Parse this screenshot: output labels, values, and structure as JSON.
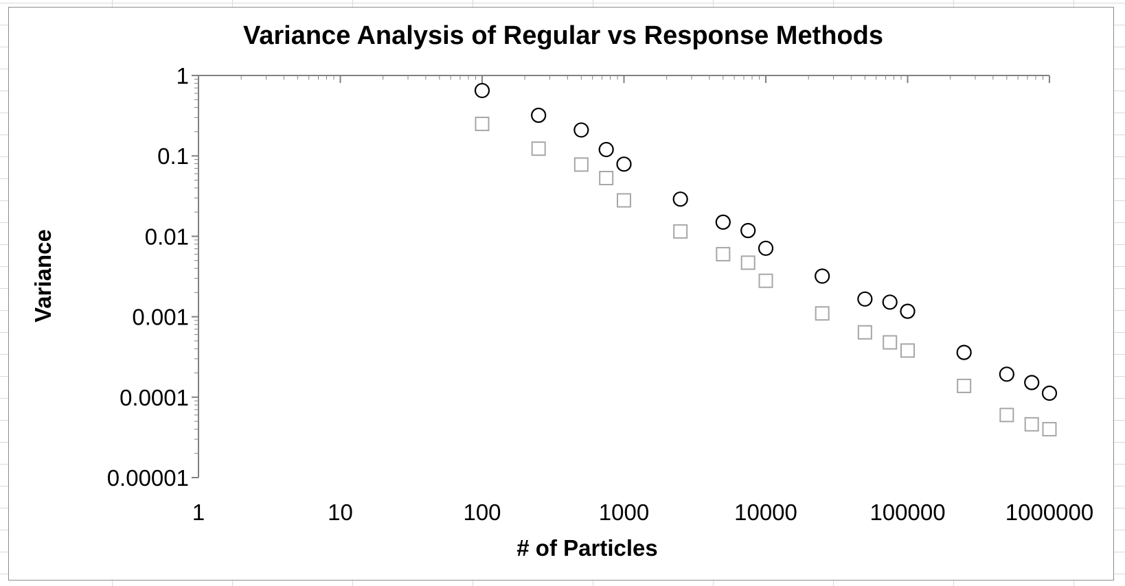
{
  "chart_data": {
    "type": "scatter",
    "title": "Variance Analysis of Regular vs Response Methods",
    "xlabel": "# of Particles",
    "ylabel": "Variance",
    "xscale": "log",
    "yscale": "log",
    "xlim": [
      1,
      1000000
    ],
    "ylim": [
      1e-05,
      1
    ],
    "xticks": [
      "1",
      "10",
      "100",
      "1000",
      "10000",
      "100000",
      "1000000"
    ],
    "yticks": [
      "1",
      "0.1",
      "0.01",
      "0.001",
      "0.0001",
      "0.00001"
    ],
    "legend": "none",
    "grid": false,
    "series": [
      {
        "marker": "circle",
        "color": "#000000",
        "x": [
          100,
          250,
          500,
          750,
          1000,
          2500,
          5000,
          7500,
          10000,
          25000,
          50000,
          75000,
          100000,
          250000,
          500000,
          750000,
          1000000
        ],
        "y": [
          0.65,
          0.32,
          0.21,
          0.12,
          0.079,
          0.029,
          0.015,
          0.0118,
          0.0071,
          0.0032,
          0.00166,
          0.00152,
          0.00117,
          0.00036,
          0.000193,
          0.000152,
          0.000112
        ]
      },
      {
        "marker": "square",
        "color": "#a6a6a6",
        "x": [
          100,
          250,
          500,
          750,
          1000,
          2500,
          5000,
          7500,
          10000,
          25000,
          50000,
          75000,
          100000,
          250000,
          500000,
          750000,
          1000000
        ],
        "y": [
          0.25,
          0.123,
          0.078,
          0.053,
          0.028,
          0.0115,
          0.006,
          0.0047,
          0.0028,
          0.0011,
          0.00064,
          0.00048,
          0.00038,
          0.000138,
          6e-05,
          4.6e-05,
          4e-05
        ]
      }
    ]
  }
}
